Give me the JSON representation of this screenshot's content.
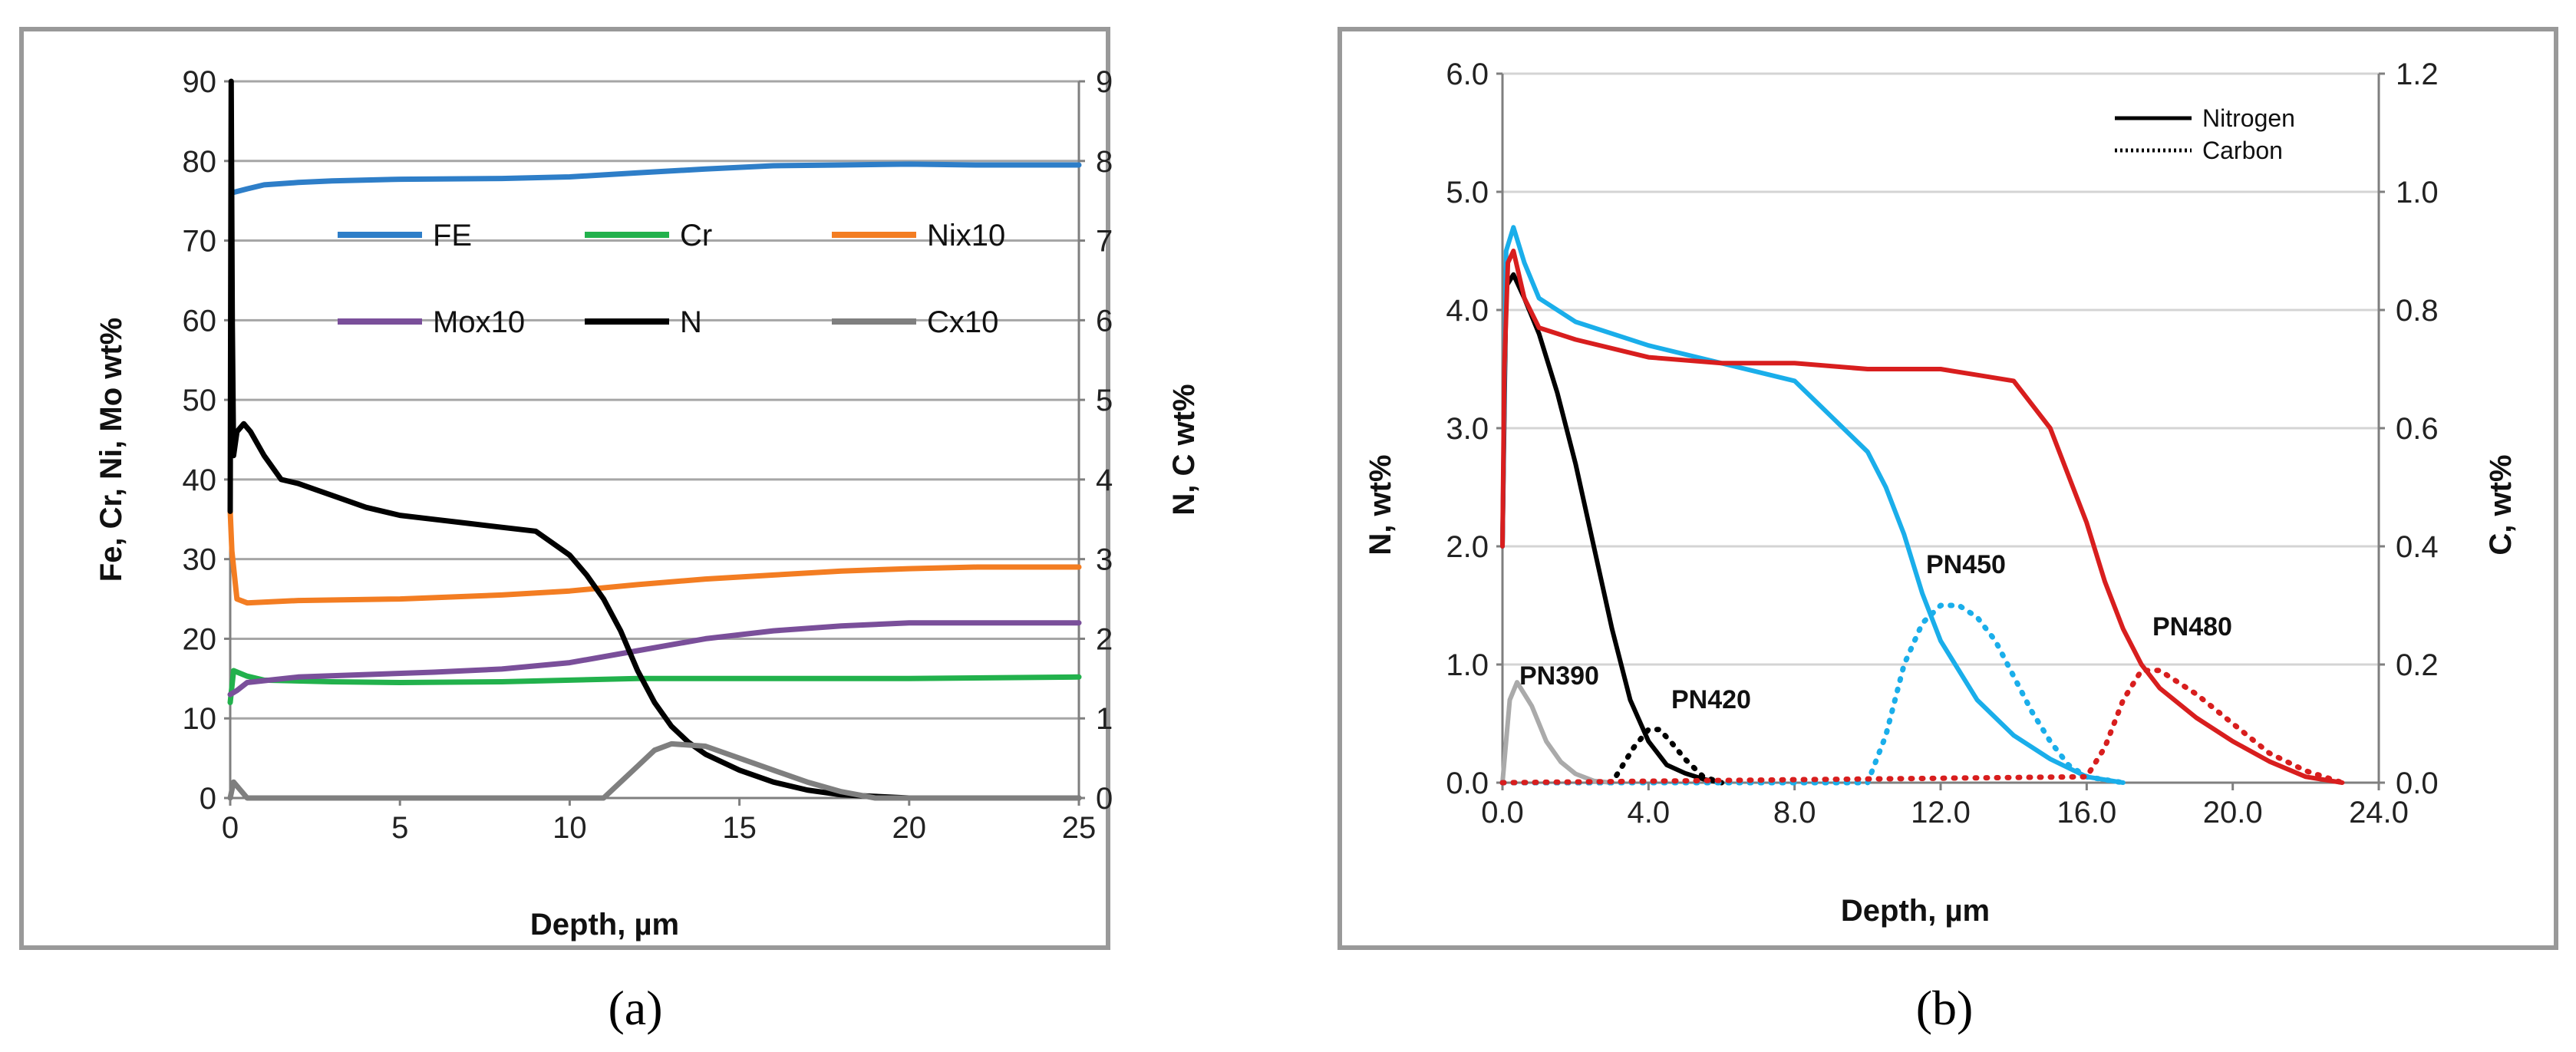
{
  "chart_data": [
    {
      "type": "line",
      "panel_label": "(a)",
      "xlabel": "Depth, µm",
      "ylabel_left": "Fe, Cr, Ni, Mo wt%",
      "ylabel_right": "N, C wt%",
      "xlim": [
        0,
        25
      ],
      "ylim_left": [
        0,
        90
      ],
      "ylim_right": [
        0,
        9
      ],
      "x_ticks": [
        "0",
        "5",
        "10",
        "15",
        "20",
        "25"
      ],
      "y_ticks_left": [
        "0",
        "10",
        "20",
        "30",
        "40",
        "50",
        "60",
        "70",
        "80",
        "90"
      ],
      "y_ticks_right": [
        "0",
        "1",
        "2",
        "3",
        "4",
        "5",
        "6",
        "7",
        "8",
        "9"
      ],
      "grid": true,
      "legend": [
        "FE",
        "Cr",
        "Nix10",
        "Mox10",
        "N",
        "Cx10"
      ],
      "series": [
        {
          "name": "FE",
          "axis": "left",
          "color": "#2e7ec8",
          "x": [
            0.05,
            0.5,
            1,
            2,
            3,
            5,
            8,
            10,
            12,
            14,
            16,
            18,
            20,
            22,
            25
          ],
          "y": [
            76,
            76.5,
            77,
            77.3,
            77.5,
            77.7,
            77.8,
            78,
            78.5,
            79,
            79.4,
            79.5,
            79.6,
            79.5,
            79.5
          ]
        },
        {
          "name": "Cr",
          "axis": "left",
          "color": "#22b14c",
          "x": [
            0,
            0.1,
            0.5,
            1,
            3,
            5,
            8,
            10,
            12,
            15,
            20,
            25
          ],
          "y": [
            12,
            16,
            15.3,
            14.8,
            14.6,
            14.5,
            14.6,
            14.8,
            15,
            15,
            15,
            15.2
          ]
        },
        {
          "name": "Nix10",
          "axis": "left",
          "color": "#f37d22",
          "x": [
            0,
            0.05,
            0.2,
            0.5,
            2,
            5,
            8,
            10,
            12,
            14,
            16,
            18,
            20,
            22,
            25
          ],
          "y": [
            36,
            31,
            25,
            24.5,
            24.8,
            25,
            25.5,
            26,
            26.8,
            27.5,
            28,
            28.5,
            28.8,
            29,
            29
          ]
        },
        {
          "name": "Mox10",
          "axis": "left",
          "color": "#7a4f9a",
          "x": [
            0,
            0.2,
            0.5,
            2,
            4,
            6,
            8,
            10,
            12,
            14,
            16,
            18,
            20,
            22,
            25
          ],
          "y": [
            13,
            13.5,
            14.5,
            15.2,
            15.5,
            15.8,
            16.2,
            17,
            18.5,
            20,
            21,
            21.6,
            22,
            22,
            22
          ]
        },
        {
          "name": "N",
          "axis": "right",
          "color": "#000000",
          "x": [
            0,
            0.03,
            0.06,
            0.1,
            0.2,
            0.4,
            0.6,
            1,
            1.5,
            2,
            3,
            4,
            5,
            6,
            7,
            8,
            9,
            9.5,
            10,
            10.5,
            11,
            11.5,
            12,
            12.5,
            13,
            13.5,
            14,
            15,
            16,
            17,
            18,
            19,
            20,
            21,
            22,
            25
          ],
          "y": [
            3.6,
            9.0,
            6.0,
            4.3,
            4.6,
            4.7,
            4.6,
            4.3,
            4.0,
            3.95,
            3.8,
            3.65,
            3.55,
            3.5,
            3.45,
            3.4,
            3.35,
            3.2,
            3.05,
            2.8,
            2.5,
            2.1,
            1.6,
            1.2,
            0.9,
            0.7,
            0.55,
            0.35,
            0.2,
            0.1,
            0.04,
            0.02,
            0.0,
            0.0,
            0.0,
            0.0
          ]
        },
        {
          "name": "Cx10",
          "axis": "right",
          "color": "#7f7f7f",
          "x": [
            0,
            0.1,
            0.3,
            0.5,
            1,
            5,
            11,
            11.5,
            12,
            12.5,
            13,
            14,
            15,
            16,
            17,
            18,
            19,
            25
          ],
          "y": [
            0.0,
            0.2,
            0.1,
            0.0,
            0.0,
            0.0,
            0.0,
            0.2,
            0.4,
            0.6,
            0.68,
            0.65,
            0.5,
            0.35,
            0.2,
            0.08,
            0.0,
            0.0
          ]
        }
      ]
    },
    {
      "type": "line",
      "panel_label": "(b)",
      "xlabel": "Depth, µm",
      "ylabel_left": "N, wt%",
      "ylabel_right": "C, wt%",
      "xlim": [
        0,
        24
      ],
      "ylim_left": [
        0,
        6
      ],
      "ylim_right": [
        0,
        1.2
      ],
      "x_ticks": [
        "0.0",
        "4.0",
        "8.0",
        "12.0",
        "16.0",
        "20.0",
        "24.0"
      ],
      "y_ticks_left": [
        "0.0",
        "1.0",
        "2.0",
        "3.0",
        "4.0",
        "5.0",
        "6.0"
      ],
      "y_ticks_right": [
        "0.0",
        "0.2",
        "0.4",
        "0.6",
        "0.8",
        "1.0",
        "1.2"
      ],
      "grid": true,
      "legend": [
        "Nitrogen",
        "Carbon"
      ],
      "annotations": [
        "PN390",
        "PN420",
        "PN450",
        "PN480"
      ],
      "series": [
        {
          "name": "PN420 Nitrogen",
          "axis": "left",
          "style": "solid",
          "color": "#000000",
          "x": [
            0,
            0.1,
            0.3,
            0.6,
            1,
            1.5,
            2,
            2.5,
            3,
            3.5,
            4,
            4.5,
            5,
            5.5,
            6
          ],
          "y": [
            2.0,
            4.2,
            4.3,
            4.1,
            3.8,
            3.3,
            2.7,
            2.0,
            1.3,
            0.7,
            0.35,
            0.15,
            0.08,
            0.03,
            0.0
          ]
        },
        {
          "name": "PN450 Nitrogen",
          "axis": "left",
          "style": "solid",
          "color": "#1aaeea",
          "x": [
            0,
            0.1,
            0.3,
            0.6,
            1,
            2,
            4,
            6,
            8,
            9,
            10,
            10.5,
            11,
            11.5,
            12,
            13,
            14,
            15,
            16,
            17
          ],
          "y": [
            2.0,
            4.5,
            4.7,
            4.4,
            4.1,
            3.9,
            3.7,
            3.55,
            3.4,
            3.1,
            2.8,
            2.5,
            2.1,
            1.6,
            1.2,
            0.7,
            0.4,
            0.2,
            0.05,
            0.0
          ]
        },
        {
          "name": "PN480 Nitrogen",
          "axis": "left",
          "style": "solid",
          "color": "#d81e1e",
          "x": [
            0,
            0.05,
            0.15,
            0.3,
            0.6,
            1,
            2,
            4,
            6,
            8,
            10,
            12,
            13,
            14,
            14.5,
            15,
            15.5,
            16,
            16.5,
            17,
            17.5,
            18,
            19,
            20,
            21,
            22,
            23
          ],
          "y": [
            2.0,
            3.5,
            4.4,
            4.5,
            4.1,
            3.85,
            3.75,
            3.6,
            3.55,
            3.55,
            3.5,
            3.5,
            3.45,
            3.4,
            3.2,
            3.0,
            2.6,
            2.2,
            1.7,
            1.3,
            1.0,
            0.8,
            0.55,
            0.35,
            0.18,
            0.05,
            0.0
          ]
        },
        {
          "name": "PN390 Carbon",
          "axis": "right",
          "style": "solid",
          "color": "#aaaaaa",
          "x": [
            0,
            0.2,
            0.4,
            0.8,
            1.2,
            1.6,
            2,
            2.5,
            3
          ],
          "y": [
            0.0,
            0.14,
            0.17,
            0.13,
            0.07,
            0.035,
            0.015,
            0.003,
            0.0
          ]
        },
        {
          "name": "PN420 Carbon",
          "axis": "right",
          "style": "dotted",
          "color": "#000000",
          "x": [
            0,
            3,
            3.3,
            3.6,
            4,
            4.3,
            4.6,
            5,
            5.5,
            6
          ],
          "y": [
            0.0,
            0.0,
            0.03,
            0.06,
            0.09,
            0.09,
            0.07,
            0.04,
            0.01,
            0.0
          ]
        },
        {
          "name": "PN450 Carbon",
          "axis": "right",
          "style": "dotted",
          "color": "#1aaeea",
          "x": [
            0,
            10,
            10.5,
            11,
            11.5,
            12,
            12.5,
            13,
            13.5,
            14,
            14.5,
            15,
            15.5,
            16,
            17
          ],
          "y": [
            0.0,
            0.0,
            0.08,
            0.2,
            0.27,
            0.3,
            0.3,
            0.28,
            0.24,
            0.18,
            0.12,
            0.07,
            0.03,
            0.01,
            0.0
          ]
        },
        {
          "name": "PN480 Carbon",
          "axis": "right",
          "style": "dotted",
          "color": "#d81e1e",
          "x": [
            0,
            16,
            16.5,
            17,
            17.5,
            18,
            19,
            20,
            21,
            22,
            23
          ],
          "y": [
            0.0,
            0.01,
            0.06,
            0.14,
            0.19,
            0.19,
            0.15,
            0.1,
            0.05,
            0.02,
            0.0
          ]
        }
      ]
    }
  ]
}
